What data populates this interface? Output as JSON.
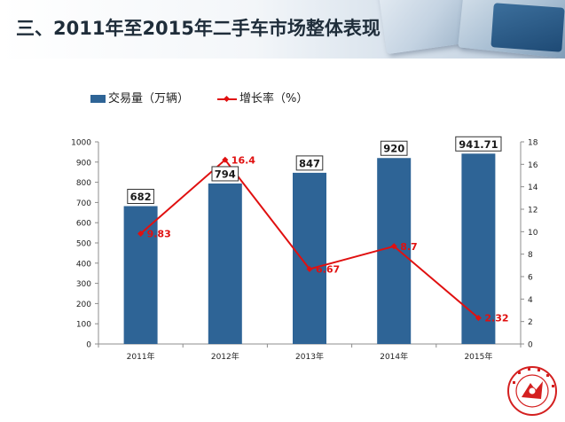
{
  "header": {
    "title": "三、2011年至2015年二手车市场整体表现"
  },
  "colors": {
    "bar": "#2e6496",
    "line": "#e01010",
    "label_text": "#e01010"
  },
  "legend": {
    "bar_label": "交易量（万辆）",
    "line_label": "增长率（%）"
  },
  "logo": {
    "icon": "association-seal-icon"
  },
  "chart_data": {
    "type": "bar",
    "categories": [
      "2011年",
      "2012年",
      "2013年",
      "2014年",
      "2015年"
    ],
    "series": [
      {
        "name": "交易量（万辆）",
        "type": "bar",
        "axis": "left",
        "values": [
          682,
          794,
          847,
          920,
          941.71
        ],
        "labels": [
          "682",
          "794",
          "847",
          "920",
          "941.71"
        ]
      },
      {
        "name": "增长率（%）",
        "type": "line",
        "axis": "right",
        "values": [
          9.83,
          16.4,
          6.67,
          8.7,
          2.32
        ],
        "labels": [
          "9.83",
          "16.4",
          "6.67",
          "8.7",
          "2.32"
        ]
      }
    ],
    "ylim_left": [
      0,
      1000
    ],
    "yticks_left": [
      "0",
      "100",
      "200",
      "300",
      "400",
      "500",
      "600",
      "700",
      "800",
      "900",
      "1000"
    ],
    "ylim_right": [
      0,
      18
    ],
    "yticks_right": [
      "0",
      "2",
      "4",
      "6",
      "8",
      "10",
      "12",
      "14",
      "16",
      "18"
    ],
    "grid": false,
    "legend_position": "top-left"
  }
}
